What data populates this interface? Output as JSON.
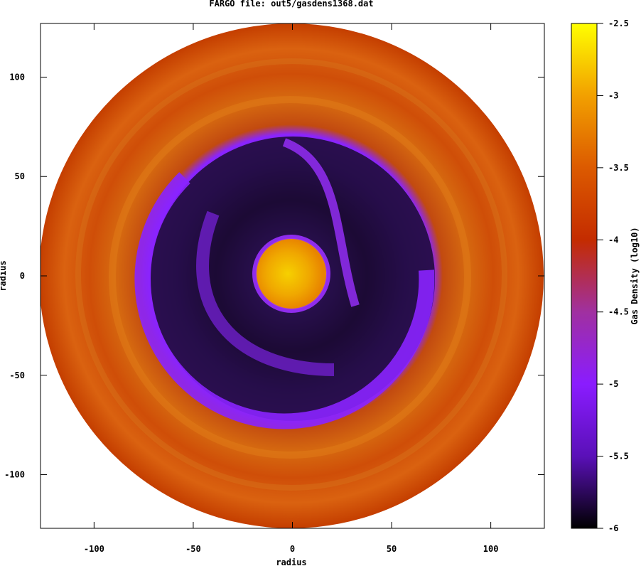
{
  "chart_data": [
    {
      "type": "heatmap",
      "title": "FARGO file: out5/gasdens1368.dat",
      "xlabel": "radius",
      "ylabel": "radius",
      "xlim": [
        -127,
        127
      ],
      "ylim": [
        -127,
        127
      ],
      "xticks": [
        -100,
        -50,
        0,
        50,
        100
      ],
      "yticks": [
        -100,
        -50,
        0,
        50,
        100
      ],
      "xtick_labels": [
        "-100",
        "-50",
        "0",
        "50",
        "100"
      ],
      "ytick_labels": [
        "-100",
        "-50",
        "0",
        "50",
        "100"
      ],
      "disk_outer_radius": 127,
      "colorbar": {
        "label": "Gas Density (log10)",
        "range": [
          -6,
          -2.5
        ],
        "ticks": [
          -2.5,
          -3,
          -3.5,
          -4,
          -4.5,
          -5,
          -5.5,
          -6
        ],
        "tick_labels": [
          "-2.5",
          "-3",
          "-3.5",
          "-4",
          "-4.5",
          "-5",
          "-5.5",
          "-6"
        ],
        "colors": [
          {
            "value": -6.0,
            "color": "#000000"
          },
          {
            "value": -5.5,
            "color": "#5a10b8"
          },
          {
            "value": -5.0,
            "color": "#8a1cff"
          },
          {
            "value": -4.5,
            "color": "#a030a0"
          },
          {
            "value": -4.0,
            "color": "#c42c00"
          },
          {
            "value": -3.5,
            "color": "#dc5a00"
          },
          {
            "value": -3.0,
            "color": "#f2a000"
          },
          {
            "value": -2.5,
            "color": "#ffff00"
          }
        ]
      }
    }
  ]
}
